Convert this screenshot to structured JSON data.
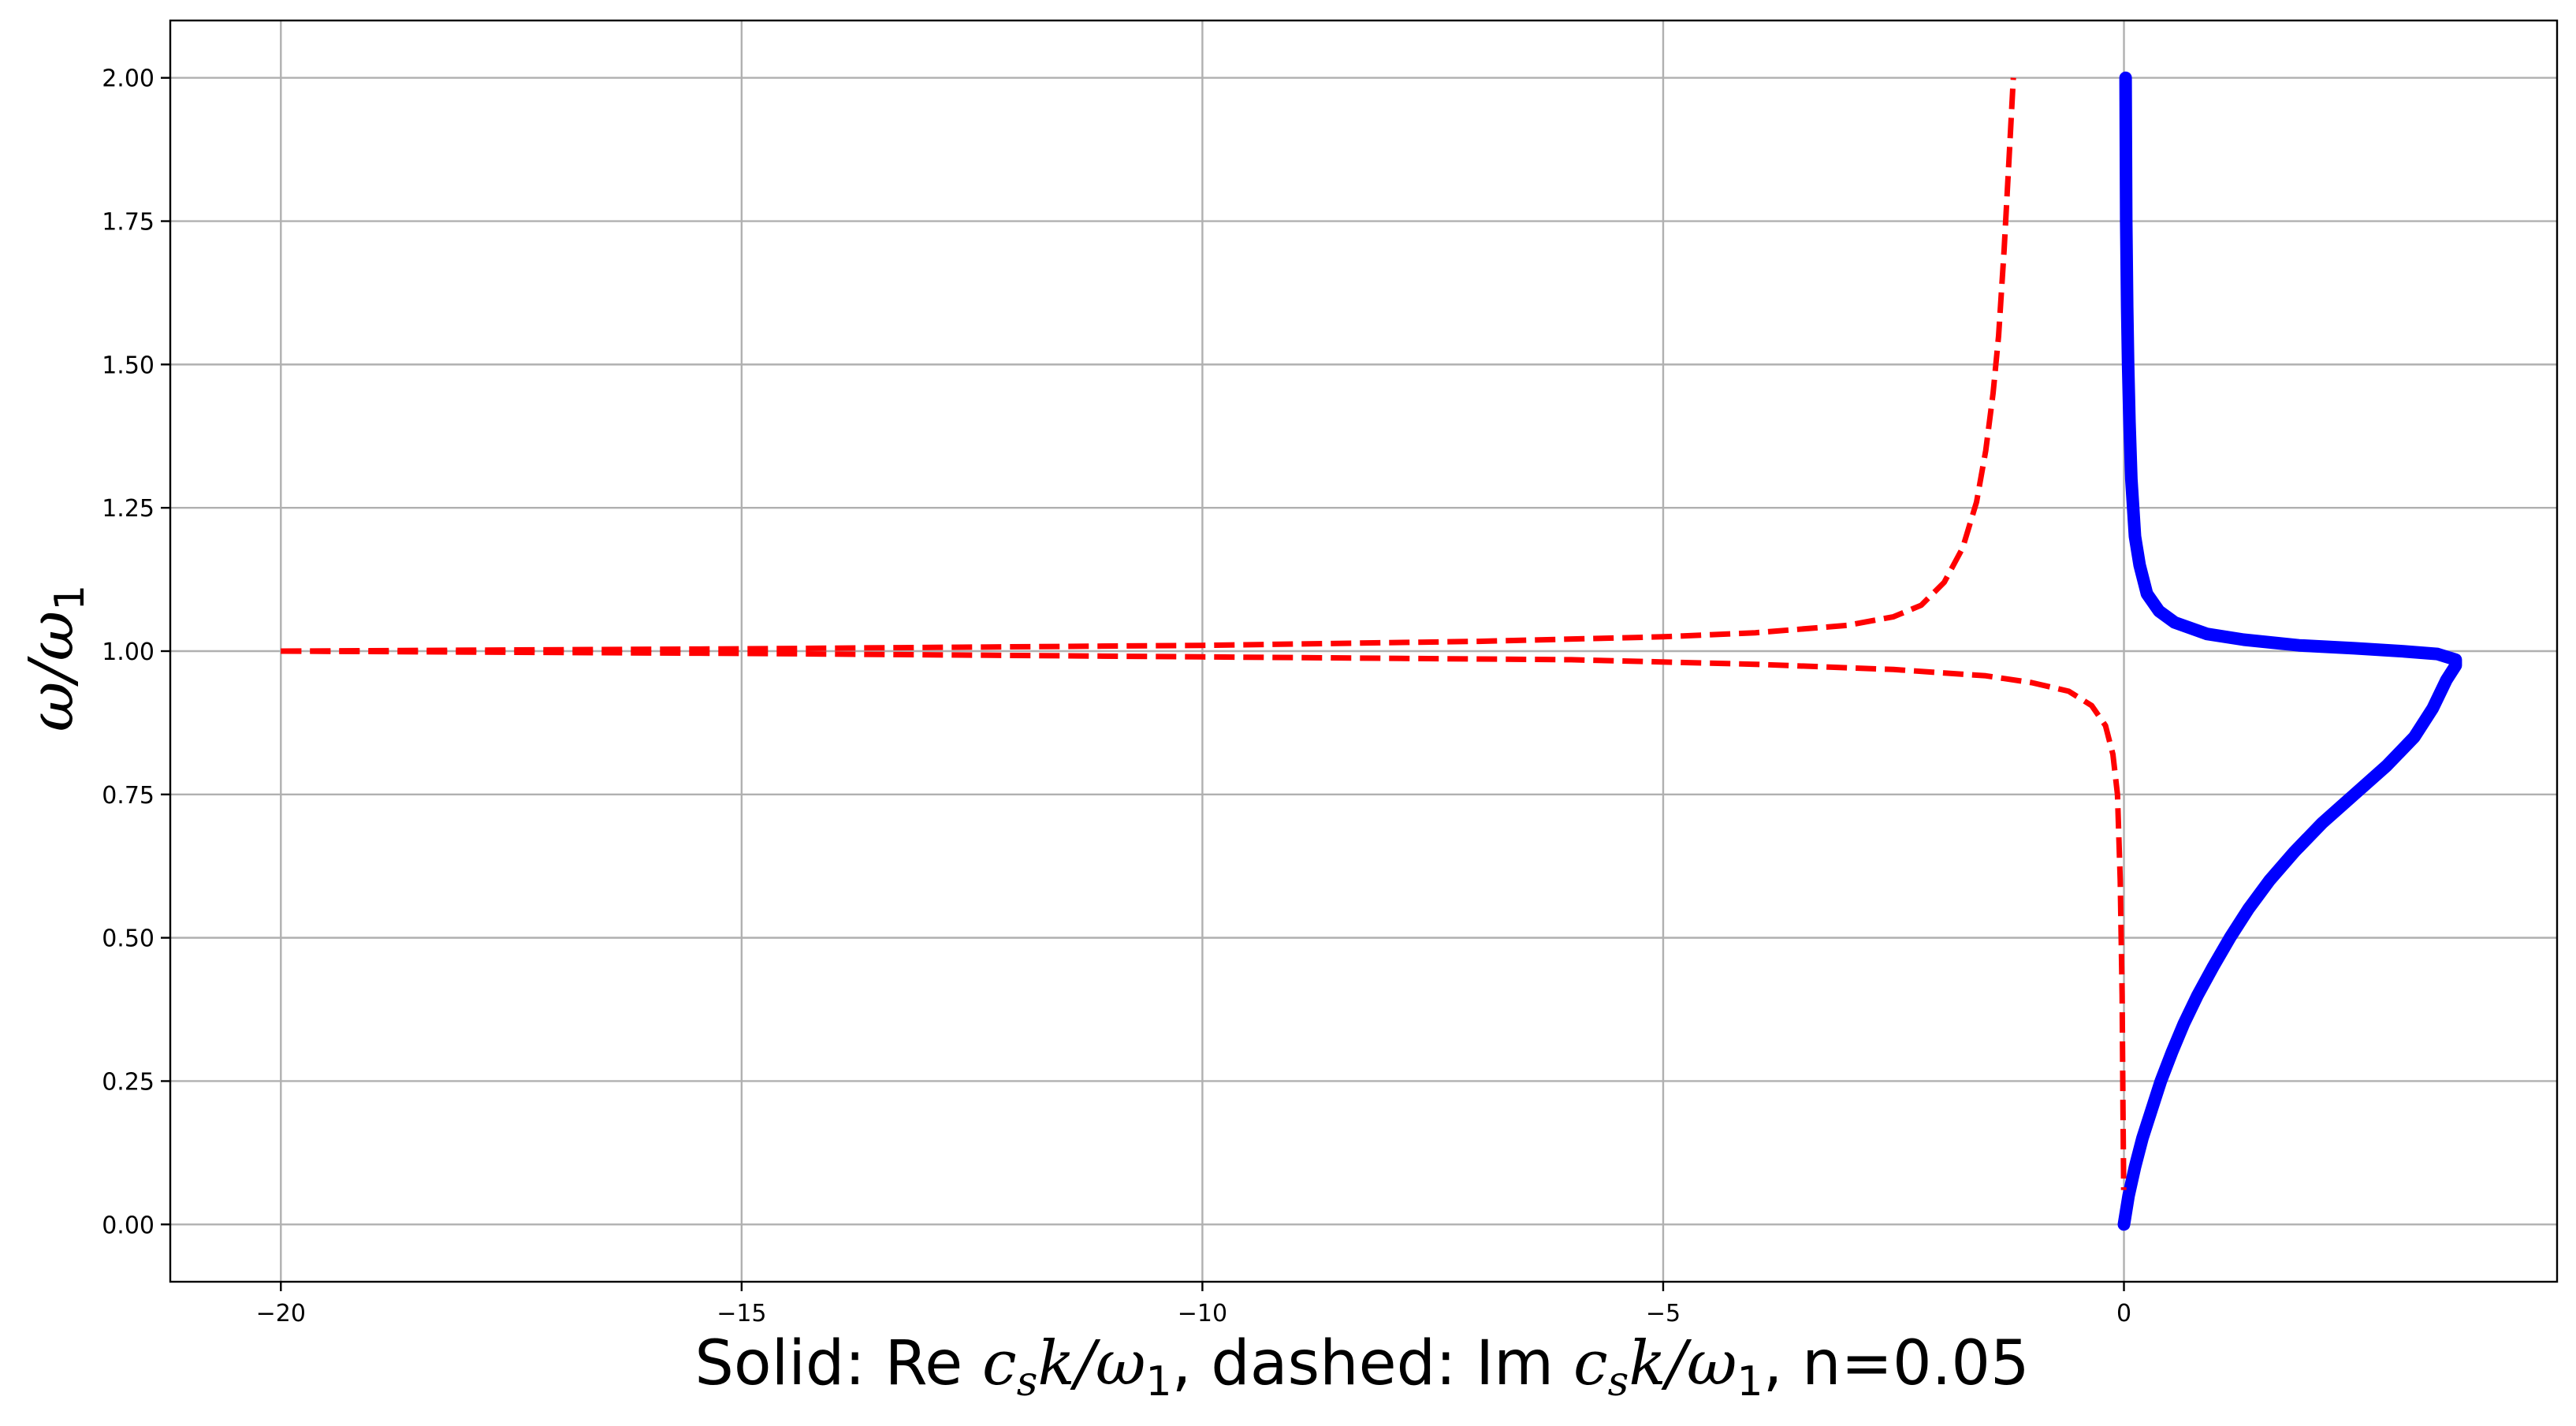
{
  "chart_data": {
    "type": "line",
    "title": "",
    "xlabel": {
      "prefix": "Solid: Re ",
      "math1": "c",
      "math1_sub": "s",
      "math1_rest": "k/ω",
      "math1_sub2": "1",
      "middle": ", dashed: Im ",
      "math2": "c",
      "math2_sub": "s",
      "math2_rest": "k/ω",
      "math2_sub2": "1",
      "suffix": ", n=0.05"
    },
    "ylabel": {
      "main": "ω/ω",
      "sub": "1"
    },
    "xlim": [
      -21.2,
      4.7
    ],
    "ylim": [
      -0.1,
      2.1
    ],
    "grid": true,
    "x_ticks": [
      -20,
      -15,
      -10,
      -5,
      0
    ],
    "x_tick_labels": [
      "−20",
      "−15",
      "−10",
      "−5",
      "0"
    ],
    "y_ticks": [
      0.0,
      0.25,
      0.5,
      0.75,
      1.0,
      1.25,
      1.5,
      1.75,
      2.0
    ],
    "y_tick_labels": [
      "0.00",
      "0.25",
      "0.50",
      "0.75",
      "1.00",
      "1.25",
      "1.50",
      "1.75",
      "2.00"
    ],
    "series": [
      {
        "style": "solid",
        "color": "#0000ff",
        "points": [
          [
            0.0,
            0.0
          ],
          [
            0.05,
            0.05
          ],
          [
            0.12,
            0.1
          ],
          [
            0.2,
            0.15
          ],
          [
            0.3,
            0.2
          ],
          [
            0.4,
            0.25
          ],
          [
            0.52,
            0.3
          ],
          [
            0.65,
            0.35
          ],
          [
            0.8,
            0.4
          ],
          [
            0.97,
            0.45
          ],
          [
            1.15,
            0.5
          ],
          [
            1.35,
            0.55
          ],
          [
            1.58,
            0.6
          ],
          [
            1.85,
            0.65
          ],
          [
            2.15,
            0.7
          ],
          [
            2.5,
            0.75
          ],
          [
            2.85,
            0.8
          ],
          [
            3.15,
            0.85
          ],
          [
            3.35,
            0.9
          ],
          [
            3.5,
            0.95
          ],
          [
            3.6,
            0.975
          ],
          [
            3.6,
            0.985
          ],
          [
            3.4,
            0.995
          ],
          [
            3.0,
            1.0
          ],
          [
            2.5,
            1.005
          ],
          [
            1.9,
            1.01
          ],
          [
            1.3,
            1.02
          ],
          [
            0.9,
            1.03
          ],
          [
            0.55,
            1.05
          ],
          [
            0.38,
            1.07
          ],
          [
            0.25,
            1.1
          ],
          [
            0.17,
            1.15
          ],
          [
            0.12,
            1.2
          ],
          [
            0.08,
            1.3
          ],
          [
            0.06,
            1.4
          ],
          [
            0.045,
            1.5
          ],
          [
            0.035,
            1.6
          ],
          [
            0.025,
            1.75
          ],
          [
            0.02,
            1.9
          ],
          [
            0.018,
            2.0
          ]
        ]
      },
      {
        "style": "dashed",
        "color": "#ff0000",
        "branch": "upper",
        "points": [
          [
            -20.0,
            1.0
          ],
          [
            -15.0,
            1.004
          ],
          [
            -10.0,
            1.01
          ],
          [
            -7.0,
            1.017
          ],
          [
            -5.0,
            1.025
          ],
          [
            -4.0,
            1.032
          ],
          [
            -3.0,
            1.045
          ],
          [
            -2.5,
            1.06
          ],
          [
            -2.2,
            1.08
          ],
          [
            -1.95,
            1.12
          ],
          [
            -1.75,
            1.18
          ],
          [
            -1.6,
            1.26
          ],
          [
            -1.5,
            1.35
          ],
          [
            -1.42,
            1.45
          ],
          [
            -1.36,
            1.55
          ],
          [
            -1.3,
            1.7
          ],
          [
            -1.25,
            1.85
          ],
          [
            -1.2,
            2.0
          ]
        ]
      },
      {
        "style": "dashed",
        "color": "#ff0000",
        "branch": "lower",
        "points": [
          [
            -20.0,
            1.0
          ],
          [
            -15.0,
            0.996
          ],
          [
            -10.0,
            0.99
          ],
          [
            -6.0,
            0.985
          ],
          [
            -4.0,
            0.977
          ],
          [
            -2.5,
            0.968
          ],
          [
            -1.5,
            0.957
          ],
          [
            -1.0,
            0.945
          ],
          [
            -0.6,
            0.93
          ],
          [
            -0.35,
            0.905
          ],
          [
            -0.2,
            0.87
          ],
          [
            -0.12,
            0.82
          ],
          [
            -0.07,
            0.75
          ],
          [
            -0.04,
            0.6
          ],
          [
            -0.02,
            0.4
          ],
          [
            -0.01,
            0.2
          ],
          [
            -0.003,
            0.06
          ]
        ]
      }
    ]
  }
}
